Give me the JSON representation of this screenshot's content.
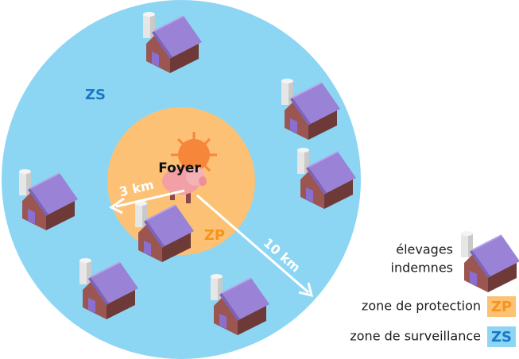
{
  "labels": {
    "zone_surveillance": "ZS",
    "foyer": "Foyer",
    "radius_3km": "3 km",
    "radius_10km": "10 km",
    "zone_protection": "ZP"
  },
  "legend": {
    "farms": [
      "élevages",
      "indemnes"
    ],
    "items": [
      {
        "label": "zone de protection",
        "badge": "ZP"
      },
      {
        "label": "zone de surveillance",
        "badge": "ZS"
      }
    ]
  }
}
